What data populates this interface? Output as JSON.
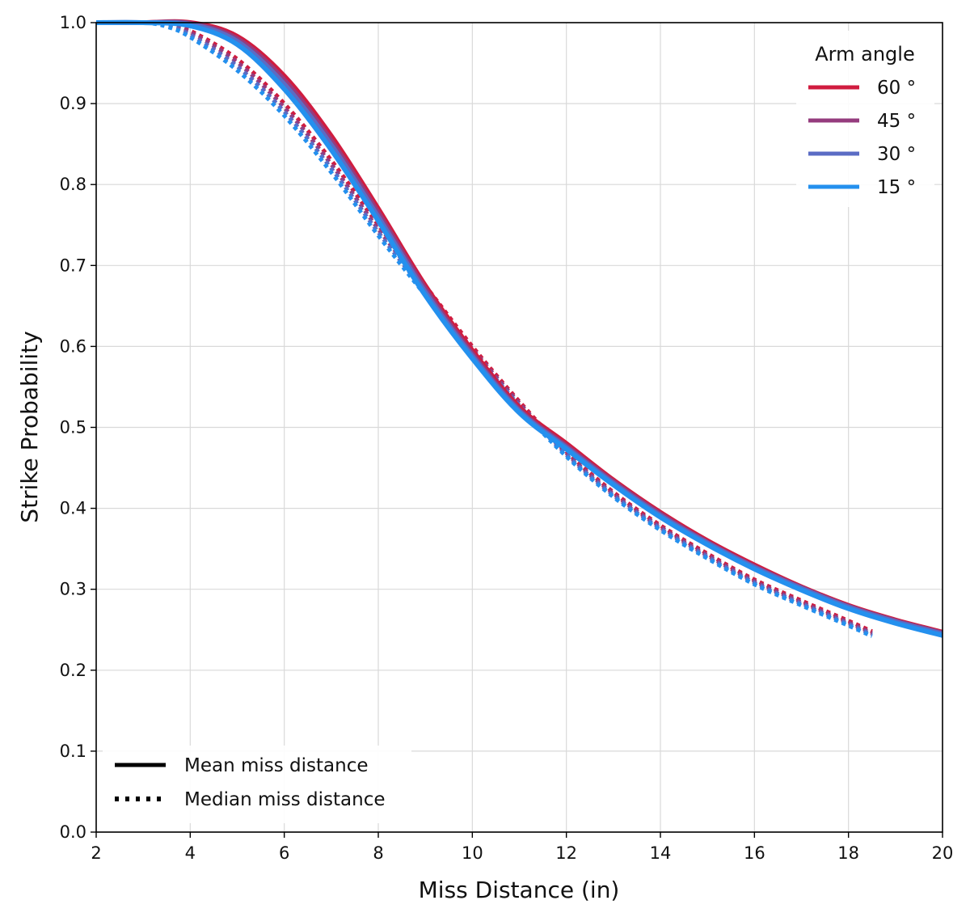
{
  "chart_data": {
    "type": "line",
    "title": "",
    "xlabel": "Miss Distance (in)",
    "ylabel": "Strike Probability",
    "xlim": [
      2,
      20
    ],
    "ylim": [
      0.0,
      1.0
    ],
    "x_ticks": [
      "2",
      "4",
      "6",
      "8",
      "10",
      "12",
      "14",
      "16",
      "18",
      "20"
    ],
    "y_ticks": [
      "0.0",
      "0.1",
      "0.2",
      "0.3",
      "0.4",
      "0.5",
      "0.6",
      "0.7",
      "0.8",
      "0.9",
      "1.0"
    ],
    "grid": true,
    "color_legend": {
      "title": "Arm angle",
      "position": "top-right",
      "entries": [
        {
          "label": "60 °",
          "color": "#d01c3f"
        },
        {
          "label": "45 °",
          "color": "#953c7e"
        },
        {
          "label": "30 °",
          "color": "#5b6cc4"
        },
        {
          "label": "15 °",
          "color": "#2490ee"
        }
      ]
    },
    "style_legend": {
      "position": "bottom-left",
      "entries": [
        {
          "label": "Mean miss distance",
          "style": "solid"
        },
        {
          "label": "Median miss distance",
          "style": "dotted"
        }
      ]
    },
    "series": [
      {
        "name": "60 °",
        "group": "Mean miss distance",
        "color": "#d01c3f",
        "style": "solid",
        "x": [
          2,
          3,
          4,
          5,
          6,
          7,
          8,
          9,
          10,
          11,
          12,
          13,
          14,
          15,
          16,
          17,
          18,
          19,
          20
        ],
        "y": [
          1.0,
          1.0,
          1.0,
          0.983,
          0.934,
          0.86,
          0.77,
          0.675,
          0.595,
          0.525,
          0.48,
          0.435,
          0.395,
          0.36,
          0.33,
          0.303,
          0.28,
          0.262,
          0.247
        ]
      },
      {
        "name": "45 °",
        "group": "Mean miss distance",
        "color": "#953c7e",
        "style": "solid",
        "x": [
          2,
          3,
          4,
          5,
          6,
          7,
          8,
          9,
          10,
          11,
          12,
          13,
          14,
          15,
          16,
          17,
          18,
          19,
          20
        ],
        "y": [
          1.0,
          1.0,
          0.999,
          0.98,
          0.929,
          0.854,
          0.765,
          0.671,
          0.591,
          0.522,
          0.477,
          0.433,
          0.393,
          0.358,
          0.328,
          0.302,
          0.279,
          0.261,
          0.246
        ]
      },
      {
        "name": "30 °",
        "group": "Mean miss distance",
        "color": "#5b6cc4",
        "style": "solid",
        "x": [
          2,
          3,
          4,
          5,
          6,
          7,
          8,
          9,
          10,
          11,
          12,
          13,
          14,
          15,
          16,
          17,
          18,
          19,
          20
        ],
        "y": [
          1.0,
          1.0,
          0.998,
          0.977,
          0.924,
          0.849,
          0.76,
          0.667,
          0.588,
          0.52,
          0.475,
          0.431,
          0.391,
          0.357,
          0.327,
          0.301,
          0.278,
          0.26,
          0.245
        ]
      },
      {
        "name": "15 °",
        "group": "Mean miss distance",
        "color": "#2490ee",
        "style": "solid",
        "x": [
          2,
          3,
          4,
          5,
          6,
          7,
          8,
          9,
          10,
          11,
          12,
          13,
          14,
          15,
          16,
          17,
          18,
          19,
          20
        ],
        "y": [
          1.0,
          1.0,
          0.996,
          0.973,
          0.918,
          0.843,
          0.755,
          0.663,
          0.585,
          0.518,
          0.473,
          0.429,
          0.389,
          0.355,
          0.325,
          0.299,
          0.276,
          0.258,
          0.243
        ]
      },
      {
        "name": "60 °",
        "group": "Median miss distance",
        "color": "#d01c3f",
        "style": "dotted",
        "x": [
          2,
          3,
          3.5,
          4,
          5,
          6,
          7,
          8,
          9,
          10,
          11,
          12,
          13,
          14,
          15,
          16,
          17,
          18,
          18.5
        ],
        "y": [
          1.0,
          1.0,
          0.998,
          0.99,
          0.955,
          0.9,
          0.83,
          0.75,
          0.675,
          0.6,
          0.532,
          0.47,
          0.42,
          0.379,
          0.344,
          0.312,
          0.286,
          0.261,
          0.248
        ]
      },
      {
        "name": "45 °",
        "group": "Median miss distance",
        "color": "#953c7e",
        "style": "dotted",
        "x": [
          2,
          3,
          3.5,
          4,
          5,
          6,
          7,
          8,
          9,
          10,
          11,
          12,
          13,
          14,
          15,
          16,
          17,
          18,
          18.5
        ],
        "y": [
          1.0,
          1.0,
          0.997,
          0.988,
          0.951,
          0.895,
          0.825,
          0.745,
          0.671,
          0.597,
          0.53,
          0.468,
          0.418,
          0.377,
          0.342,
          0.31,
          0.284,
          0.259,
          0.246
        ]
      },
      {
        "name": "30 °",
        "group": "Median miss distance",
        "color": "#5b6cc4",
        "style": "dotted",
        "x": [
          2,
          3,
          3.5,
          4,
          5,
          6,
          7,
          8,
          9,
          10,
          11,
          12,
          13,
          14,
          15,
          16,
          17,
          18,
          18.5
        ],
        "y": [
          1.0,
          1.0,
          0.996,
          0.985,
          0.946,
          0.89,
          0.82,
          0.741,
          0.667,
          0.594,
          0.527,
          0.466,
          0.416,
          0.375,
          0.34,
          0.308,
          0.282,
          0.257,
          0.244
        ]
      },
      {
        "name": "15 °",
        "group": "Median miss distance",
        "color": "#2490ee",
        "style": "dotted",
        "x": [
          2,
          3,
          3.5,
          4,
          5,
          6,
          7,
          8,
          9,
          10,
          11,
          12,
          13,
          14,
          15,
          16,
          17,
          18,
          18.5
        ],
        "y": [
          1.0,
          1.0,
          0.995,
          0.982,
          0.941,
          0.885,
          0.815,
          0.737,
          0.663,
          0.591,
          0.524,
          0.464,
          0.414,
          0.373,
          0.338,
          0.306,
          0.28,
          0.255,
          0.242
        ]
      }
    ]
  }
}
